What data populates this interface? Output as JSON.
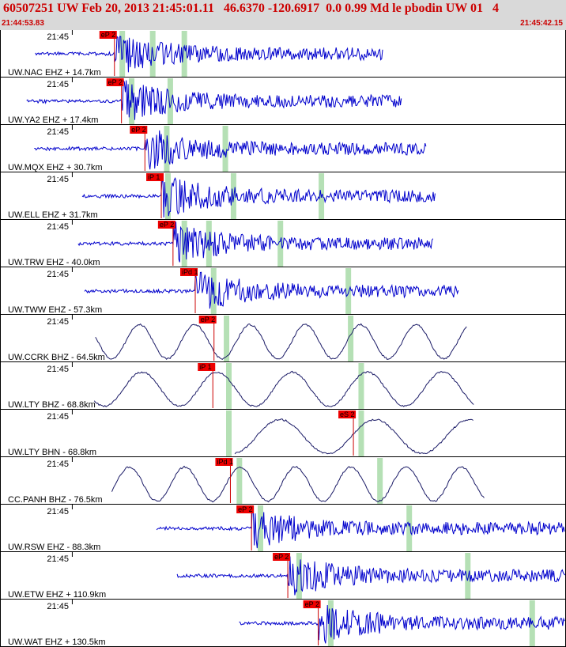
{
  "header": {
    "title": "60507251 UW Feb 20, 2013 21:45:01.11   46.6370 -120.6917  0.0 0.99 Md le pbodin UW 01   4",
    "start_time": "21:44:53.83",
    "end_time": "21:45:42.15"
  },
  "colors": {
    "header_bg": "#d9d9d9",
    "header_text": "#cc0000",
    "trace_hf": "#0000cc",
    "trace_lp": "#1a1a66",
    "pick_box": "#ee0000",
    "pick_line": "#cc0000",
    "window_band": "#b5e0b5",
    "separator": "#000000"
  },
  "chart_data": {
    "type": "line",
    "x_range_time": [
      "21:44:53.83",
      "21:45:42.15"
    ],
    "minute_tick_label": "21:45",
    "traces": [
      {
        "label": "UW.NAC EHZ + 14.7km",
        "kind": "hf",
        "pick": "eP 2",
        "pick_time": "21:45:03.6",
        "windows": [
          "21:45:04.2",
          "21:45:06.8",
          "21:45:09.5"
        ],
        "data_end": "21:45:26.5"
      },
      {
        "label": "UW.YA2 EHZ + 17.4km",
        "kind": "hf",
        "pick": "eP 2",
        "pick_time": "21:45:04.2",
        "windows": [
          "21:45:05.0",
          "21:45:08.3"
        ],
        "data_end": "21:45:28.1"
      },
      {
        "label": "UW.MQX EHZ + 30.7km",
        "kind": "hf",
        "pick": "eP 2",
        "pick_time": "21:45:06.2",
        "windows": [
          "21:45:08.0",
          "21:45:13.0"
        ],
        "data_end": "21:45:30.2"
      },
      {
        "label": "UW.ELL EHZ + 31.7km",
        "kind": "hf",
        "pick": "iP 1",
        "pick_time": "21:45:07.6",
        "windows": [
          "21:45:08.1",
          "21:45:13.7",
          "21:45:21.2"
        ],
        "data_end": "21:45:31.0"
      },
      {
        "label": "UW.TRW EHZ - 40.0km",
        "kind": "hf",
        "pick": "eP 2",
        "pick_time": "21:45:08.6",
        "windows": [
          "21:45:09.5",
          "21:45:11.6",
          "21:45:17.7"
        ],
        "data_end": "21:45:30.8"
      },
      {
        "label": "UW.TWW EHZ - 57.3km",
        "kind": "hf",
        "pick": "iPd 1",
        "pick_time": "21:45:10.5",
        "windows": [
          "21:45:12.0",
          "21:45:23.5"
        ],
        "data_end": "21:45:33.0"
      },
      {
        "label": "UW.CCRK BHZ - 64.5km",
        "kind": "lp",
        "pick": "eP 2",
        "pick_time": "21:45:12.1",
        "windows": [
          "21:45:13.1",
          "21:45:23.7"
        ],
        "data_end": "21:45:33.7"
      },
      {
        "label": "UW.LTY BHZ - 68.8km",
        "kind": "lp",
        "pick": "iP 1",
        "pick_time": "21:45:12.0",
        "windows": [
          "21:45:13.3",
          "21:45:24.6"
        ],
        "data_end": "21:45:34.3"
      },
      {
        "label": "UW.LTY BHN - 68.8km",
        "kind": "lp",
        "pick": "eS 2",
        "pick_time": "21:45:24.0",
        "windows": [
          "21:45:13.3",
          "21:45:24.6"
        ],
        "data_end": "21:45:34.3"
      },
      {
        "label": "CC.PANH BHZ - 76.5km",
        "kind": "lp",
        "pick": "iPd 1",
        "pick_time": "21:45:13.5",
        "windows": [
          "21:45:14.2",
          "21:45:26.2"
        ],
        "data_end": "21:45:35.2"
      },
      {
        "label": "UW.RSW EHZ - 88.3km",
        "kind": "hf",
        "pick": "eP 2",
        "pick_time": "21:45:15.3",
        "windows": [
          "21:45:16.0",
          "21:45:28.7"
        ],
        "data_end": "21:45:42.1"
      },
      {
        "label": "UW.ETW EHZ + 110.9km",
        "kind": "hf",
        "pick": "eP 2",
        "pick_time": "21:45:18.4",
        "windows": [
          "21:45:19.3",
          "21:45:33.7"
        ],
        "data_end": "21:45:42.1"
      },
      {
        "label": "UW.WAT EHZ + 130.5km",
        "kind": "hf",
        "pick": "eP 2",
        "pick_time": "21:45:21.0",
        "windows": [
          "21:45:22.0",
          "21:45:39.2"
        ],
        "data_end": "21:45:42.1"
      }
    ]
  }
}
